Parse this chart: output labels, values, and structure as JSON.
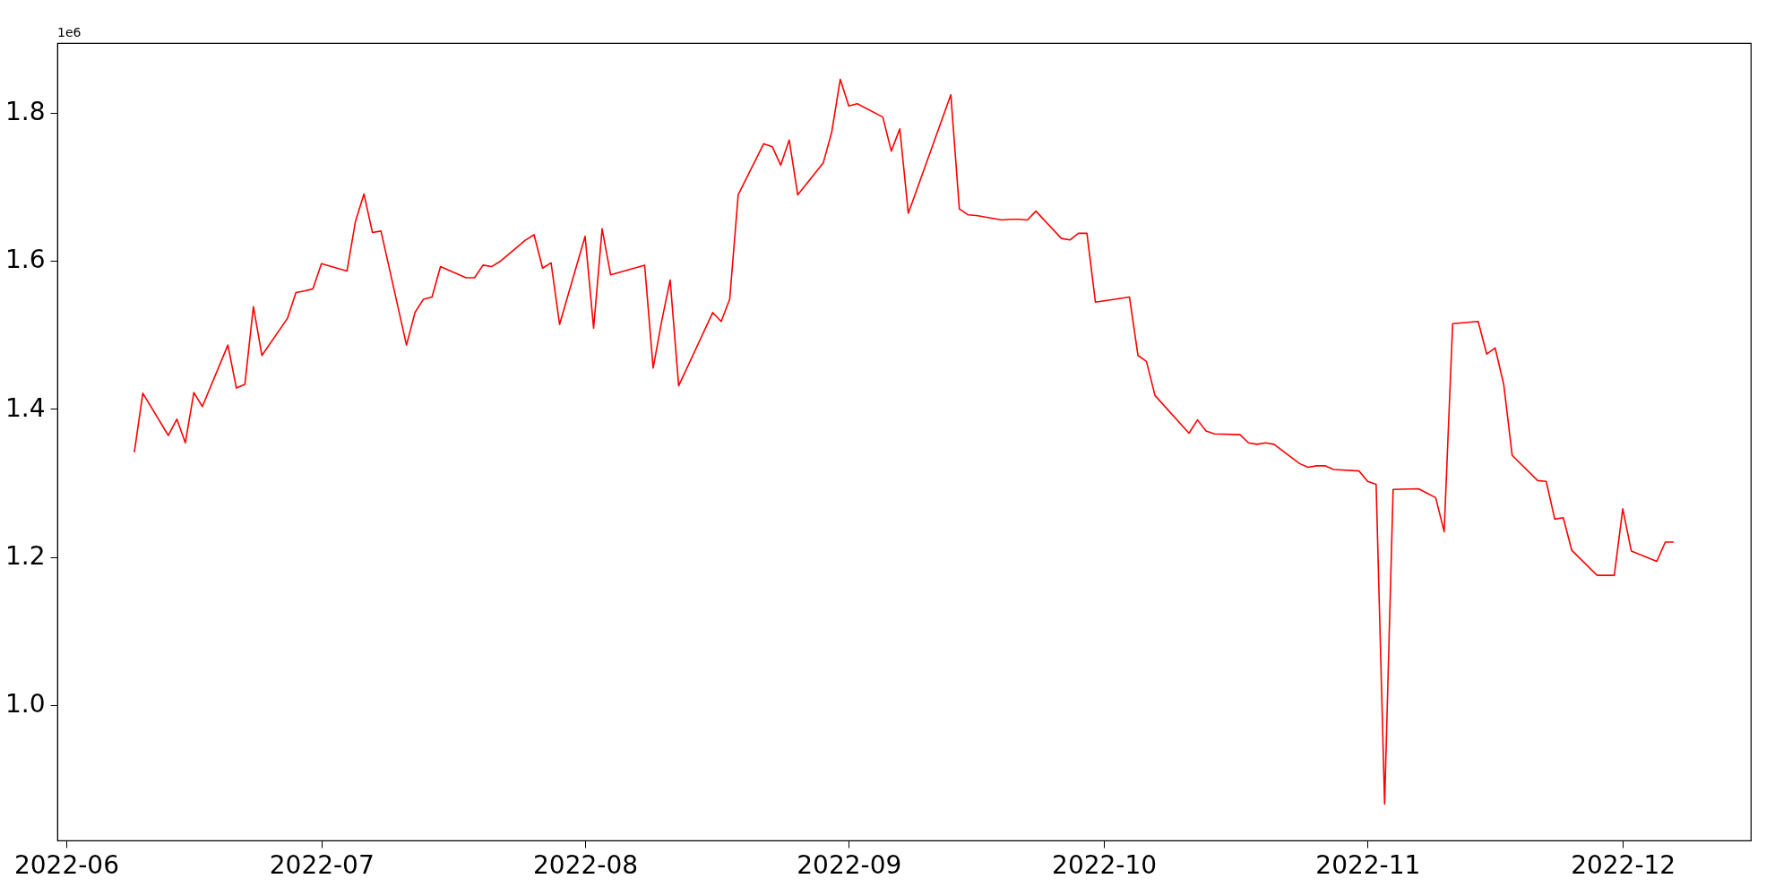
{
  "chart_data": {
    "type": "line",
    "x": [
      "2022-06-09",
      "2022-06-10",
      "2022-06-13",
      "2022-06-14",
      "2022-06-15",
      "2022-06-16",
      "2022-06-17",
      "2022-06-20",
      "2022-06-21",
      "2022-06-22",
      "2022-06-23",
      "2022-06-24",
      "2022-06-27",
      "2022-06-28",
      "2022-06-29",
      "2022-06-30",
      "2022-07-01",
      "2022-07-04",
      "2022-07-05",
      "2022-07-06",
      "2022-07-07",
      "2022-07-08",
      "2022-07-11",
      "2022-07-12",
      "2022-07-13",
      "2022-07-14",
      "2022-07-15",
      "2022-07-18",
      "2022-07-19",
      "2022-07-20",
      "2022-07-21",
      "2022-07-22",
      "2022-07-25",
      "2022-07-26",
      "2022-07-27",
      "2022-07-28",
      "2022-07-29",
      "2022-08-01",
      "2022-08-02",
      "2022-08-03",
      "2022-08-04",
      "2022-08-08",
      "2022-08-09",
      "2022-08-10",
      "2022-08-11",
      "2022-08-12",
      "2022-08-16",
      "2022-08-17",
      "2022-08-18",
      "2022-08-19",
      "2022-08-22",
      "2022-08-23",
      "2022-08-24",
      "2022-08-25",
      "2022-08-26",
      "2022-08-29",
      "2022-08-30",
      "2022-08-31",
      "2022-09-01",
      "2022-09-02",
      "2022-09-05",
      "2022-09-06",
      "2022-09-07",
      "2022-09-08",
      "2022-09-13",
      "2022-09-14",
      "2022-09-15",
      "2022-09-16",
      "2022-09-19",
      "2022-09-20",
      "2022-09-21",
      "2022-09-22",
      "2022-09-23",
      "2022-09-26",
      "2022-09-27",
      "2022-09-28",
      "2022-09-29",
      "2022-09-30",
      "2022-10-04",
      "2022-10-05",
      "2022-10-06",
      "2022-10-07",
      "2022-10-11",
      "2022-10-12",
      "2022-10-13",
      "2022-10-14",
      "2022-10-17",
      "2022-10-18",
      "2022-10-19",
      "2022-10-20",
      "2022-10-21",
      "2022-10-24",
      "2022-10-25",
      "2022-10-26",
      "2022-10-27",
      "2022-10-28",
      "2022-10-31",
      "2022-11-01",
      "2022-11-02",
      "2022-11-03",
      "2022-11-04",
      "2022-11-07",
      "2022-11-08",
      "2022-11-09",
      "2022-11-10",
      "2022-11-11",
      "2022-11-14",
      "2022-11-15",
      "2022-11-16",
      "2022-11-17",
      "2022-11-18",
      "2022-11-21",
      "2022-11-22",
      "2022-11-23",
      "2022-11-24",
      "2022-11-25",
      "2022-11-28",
      "2022-11-29",
      "2022-11-30",
      "2022-12-01",
      "2022-12-02",
      "2022-12-05",
      "2022-12-06",
      "2022-12-07"
    ],
    "series": [
      {
        "color": "#ff0000",
        "values": [
          1.341,
          1.421,
          1.364,
          1.386,
          1.354,
          1.422,
          1.403,
          1.486,
          1.428,
          1.433,
          1.538,
          1.472,
          1.522,
          1.557,
          1.559,
          1.562,
          1.596,
          1.586,
          1.653,
          1.69,
          1.638,
          1.64,
          1.486,
          1.53,
          1.548,
          1.551,
          1.592,
          1.577,
          1.577,
          1.594,
          1.592,
          1.599,
          1.628,
          1.635,
          1.59,
          1.597,
          1.514,
          1.633,
          1.509,
          1.643,
          1.581,
          1.594,
          1.455,
          1.518,
          1.574,
          1.431,
          1.53,
          1.518,
          1.548,
          1.689,
          1.758,
          1.754,
          1.729,
          1.763,
          1.689,
          1.732,
          1.774,
          1.845,
          1.809,
          1.812,
          1.794,
          1.748,
          1.778,
          1.664,
          1.824,
          1.67,
          1.662,
          1.661,
          1.655,
          1.656,
          1.656,
          1.655,
          1.667,
          1.63,
          1.628,
          1.637,
          1.637,
          1.544,
          1.551,
          1.472,
          1.464,
          1.418,
          1.367,
          1.385,
          1.37,
          1.366,
          1.365,
          1.354,
          1.352,
          1.354,
          1.352,
          1.326,
          1.321,
          1.323,
          1.323,
          1.318,
          1.316,
          1.302,
          1.298,
          0.866,
          1.291,
          1.292,
          1.286,
          1.28,
          1.234,
          1.515,
          1.518,
          1.474,
          1.482,
          1.433,
          1.337,
          1.303,
          1.302,
          1.251,
          1.253,
          1.209,
          1.175,
          1.175,
          1.175,
          1.265,
          1.208,
          1.194,
          1.22,
          1.22
        ]
      }
    ],
    "xlim": [
      "2022-05-30T22:48",
      "2022-12-16T01:12"
    ],
    "xticks": [
      {
        "value": "2022-06-01",
        "label": "2022-06"
      },
      {
        "value": "2022-07-01",
        "label": "2022-07"
      },
      {
        "value": "2022-08-01",
        "label": "2022-08"
      },
      {
        "value": "2022-09-01",
        "label": "2022-09"
      },
      {
        "value": "2022-10-01",
        "label": "2022-10"
      },
      {
        "value": "2022-11-01",
        "label": "2022-11"
      },
      {
        "value": "2022-12-01",
        "label": "2022-12"
      }
    ],
    "ylim": [
      0.817,
      1.894
    ],
    "yticks": [
      {
        "value": 1.0,
        "label": "1.0"
      },
      {
        "value": 1.2,
        "label": "1.2"
      },
      {
        "value": 1.4,
        "label": "1.4"
      },
      {
        "value": 1.6,
        "label": "1.6"
      },
      {
        "value": 1.8,
        "label": "1.8"
      }
    ],
    "annotations": [
      "1e6"
    ],
    "grid": false,
    "marker": "none",
    "line_style": "solid"
  }
}
